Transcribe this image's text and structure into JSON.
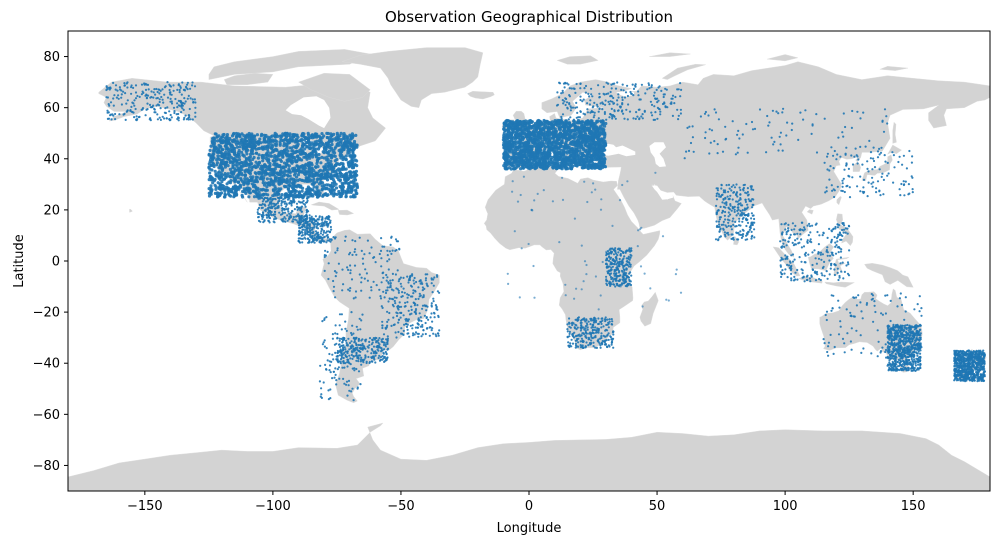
{
  "chart_data": {
    "type": "scatter",
    "title": "Observation Geographical Distribution",
    "xlabel": "Longitude",
    "ylabel": "Latitude",
    "xlim": [
      -180,
      180
    ],
    "ylim": [
      -90,
      90
    ],
    "xticks": [
      -150,
      -100,
      -50,
      0,
      50,
      100,
      150
    ],
    "yticks": [
      -80,
      -60,
      -40,
      -20,
      0,
      20,
      40,
      60,
      80
    ],
    "grid": false,
    "legend": "none",
    "colors": {
      "land": "#d3d3d3",
      "points": "#1f77b4",
      "background": "#ffffff"
    },
    "observation_clusters": [
      {
        "lon": [
          -125,
          -67
        ],
        "lat": [
          25,
          50
        ],
        "density": "very high"
      },
      {
        "lon": [
          -10,
          30
        ],
        "lat": [
          36,
          55
        ],
        "density": "very high"
      },
      {
        "lon": [
          140,
          153
        ],
        "lat": [
          -43,
          -25
        ],
        "density": "high"
      },
      {
        "lon": [
          166,
          178
        ],
        "lat": [
          -47,
          -35
        ],
        "density": "high"
      },
      {
        "lon": [
          15,
          33
        ],
        "lat": [
          -34,
          -22
        ],
        "density": "medium"
      },
      {
        "lon": [
          -106,
          -86
        ],
        "lat": [
          15,
          25
        ],
        "density": "medium"
      },
      {
        "lon": [
          -90,
          -77
        ],
        "lat": [
          7,
          18
        ],
        "density": "medium"
      },
      {
        "lon": [
          -58,
          -35
        ],
        "lat": [
          -30,
          -5
        ],
        "density": "medium"
      },
      {
        "lon": [
          -75,
          -55
        ],
        "lat": [
          -40,
          -30
        ],
        "density": "medium"
      },
      {
        "lon": [
          -165,
          -130
        ],
        "lat": [
          55,
          70
        ],
        "density": "medium"
      },
      {
        "lon": [
          73,
          88
        ],
        "lat": [
          8,
          30
        ],
        "density": "medium"
      },
      {
        "lon": [
          98,
          125
        ],
        "lat": [
          -8,
          15
        ],
        "density": "medium"
      },
      {
        "lon": [
          10,
          60
        ],
        "lat": [
          55,
          70
        ],
        "density": "medium"
      },
      {
        "lon": [
          30,
          40
        ],
        "lat": [
          -10,
          5
        ],
        "density": "medium"
      },
      {
        "lon": [
          -82,
          -65
        ],
        "lat": [
          -55,
          -20
        ],
        "density": "low"
      },
      {
        "lon": [
          -80,
          -50
        ],
        "lat": [
          -15,
          10
        ],
        "density": "low"
      },
      {
        "lon": [
          115,
          150
        ],
        "lat": [
          25,
          45
        ],
        "density": "low"
      },
      {
        "lon": [
          60,
          140
        ],
        "lat": [
          40,
          60
        ],
        "density": "low"
      },
      {
        "lon": [
          -10,
          60
        ],
        "lat": [
          -20,
          35
        ],
        "density": "sparse"
      },
      {
        "lon": [
          115,
          154
        ],
        "lat": [
          -38,
          -12
        ],
        "density": "low"
      }
    ]
  }
}
